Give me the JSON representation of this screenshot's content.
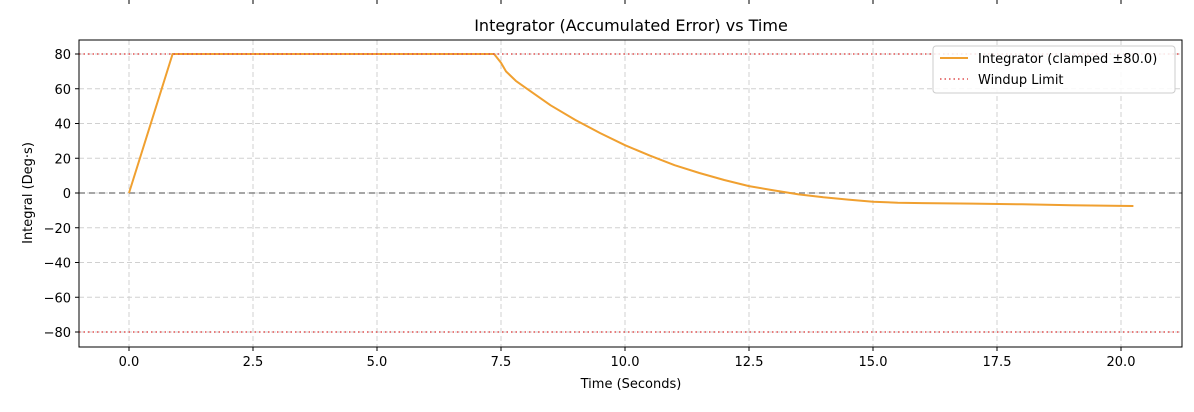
{
  "chart_data": {
    "type": "line",
    "title": "Integrator (Accumulated Error) vs Time",
    "xlabel": "Time (Seconds)",
    "ylabel": "Integral (Deg·s)",
    "xlim": [
      -0.95,
      21.25
    ],
    "ylim": [
      -88,
      88
    ],
    "xticks": [
      0.0,
      2.5,
      5.0,
      7.5,
      10.0,
      12.5,
      15.0,
      17.5,
      20.0
    ],
    "xtick_labels": [
      "0.0",
      "2.5",
      "5.0",
      "7.5",
      "10.0",
      "12.5",
      "15.0",
      "17.5",
      "20.0"
    ],
    "yticks": [
      -80,
      -60,
      -40,
      -20,
      0,
      20,
      40,
      60,
      80
    ],
    "ytick_labels": [
      "−80",
      "−60",
      "−40",
      "−20",
      "0",
      "20",
      "40",
      "60",
      "80"
    ],
    "grid": true,
    "legend_position": "upper right",
    "series": [
      {
        "name": "Integrator (clamped ±80.0)",
        "color": "#f0a030",
        "style": "solid",
        "x": [
          0.0,
          0.88,
          7.36,
          7.5,
          7.6,
          7.8,
          8.0,
          8.5,
          9.0,
          9.5,
          10.0,
          10.5,
          11.0,
          11.5,
          12.0,
          12.5,
          13.0,
          13.5,
          14.0,
          14.5,
          15.0,
          15.5,
          16.0,
          17.0,
          18.0,
          19.0,
          20.0,
          20.25
        ],
        "y": [
          0.0,
          80.0,
          80.0,
          75.0,
          70.0,
          64.5,
          60.5,
          50.5,
          42.0,
          34.5,
          27.5,
          21.5,
          16.0,
          11.5,
          7.5,
          4.0,
          1.5,
          -0.8,
          -2.5,
          -3.8,
          -5.0,
          -5.6,
          -5.8,
          -6.1,
          -6.5,
          -7.0,
          -7.4,
          -7.5
        ]
      },
      {
        "name": "Windup Limit",
        "color": "#e05050",
        "style": "dotted",
        "y_constant": [
          80,
          -80
        ]
      }
    ],
    "reference_lines": [
      {
        "y": 0,
        "color": "#888888",
        "style": "dashed"
      }
    ]
  },
  "legend": {
    "items": [
      {
        "label": "Integrator (clamped ±80.0)"
      },
      {
        "label": "Windup Limit"
      }
    ]
  }
}
